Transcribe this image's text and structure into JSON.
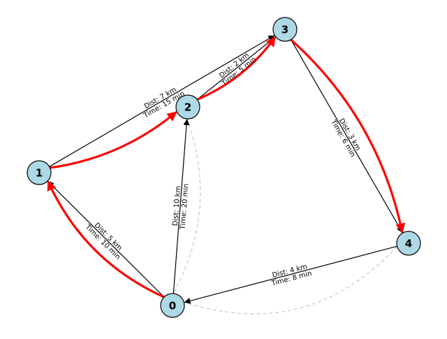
{
  "colors": {
    "node_fill": "#add8e6",
    "node_stroke": "#000000",
    "edge": "#000000",
    "route": "#ff0000",
    "alternate": "#d3d3d3"
  },
  "nodes": [
    {
      "id": "0",
      "label": "0"
    },
    {
      "id": "1",
      "label": "1"
    },
    {
      "id": "2",
      "label": "2"
    },
    {
      "id": "3",
      "label": "3"
    },
    {
      "id": "4",
      "label": "4"
    }
  ],
  "edges": [
    {
      "from": "0",
      "to": "1",
      "dist": "Dist: 5 km",
      "time": "Time: 10 min"
    },
    {
      "from": "0",
      "to": "2",
      "dist": "Dist: 10 km",
      "time": "Time: 20 min"
    },
    {
      "from": "1",
      "to": "3",
      "dist": "Dist: 7 km",
      "time": "Time: 15 min"
    },
    {
      "from": "2",
      "to": "3",
      "dist": "Dist: 2 km",
      "time": "Time: 5 min"
    },
    {
      "from": "3",
      "to": "4",
      "dist": "Dist: 3 km",
      "time": "Time: 6 min"
    },
    {
      "from": "4",
      "to": "0",
      "dist": "Dist: 4 km",
      "time": "Time: 8 min"
    }
  ],
  "highlighted_route": [
    "0",
    "1",
    "2",
    "3",
    "4"
  ],
  "alternate_links": [
    {
      "from": "2",
      "to": "0"
    },
    {
      "from": "4",
      "to": "0"
    }
  ]
}
